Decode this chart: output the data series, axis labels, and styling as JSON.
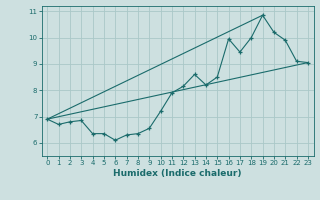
{
  "xlabel": "Humidex (Indice chaleur)",
  "ylabel": "",
  "bg_color": "#cde0e0",
  "line_color": "#1a6b6b",
  "grid_color": "#aac8c8",
  "line1_x": [
    0,
    1,
    2,
    3,
    4,
    5,
    6,
    7,
    8,
    9,
    10,
    11,
    12,
    13,
    14,
    15,
    16,
    17,
    18,
    19,
    20,
    21,
    22,
    23
  ],
  "line1_y": [
    6.9,
    6.7,
    6.8,
    6.85,
    6.35,
    6.35,
    6.1,
    6.3,
    6.35,
    6.55,
    7.2,
    7.9,
    8.15,
    8.6,
    8.2,
    8.5,
    9.95,
    9.45,
    10.0,
    10.85,
    10.2,
    9.9,
    9.1,
    9.05
  ],
  "line2_x": [
    0,
    23
  ],
  "line2_y": [
    6.9,
    9.05
  ],
  "line3_x": [
    0,
    19
  ],
  "line3_y": [
    6.9,
    10.85
  ],
  "xlim": [
    -0.5,
    23.5
  ],
  "ylim": [
    5.5,
    11.2
  ],
  "yticks": [
    6,
    7,
    8,
    9,
    10,
    11
  ],
  "xticks": [
    0,
    1,
    2,
    3,
    4,
    5,
    6,
    7,
    8,
    9,
    10,
    11,
    12,
    13,
    14,
    15,
    16,
    17,
    18,
    19,
    20,
    21,
    22,
    23
  ]
}
